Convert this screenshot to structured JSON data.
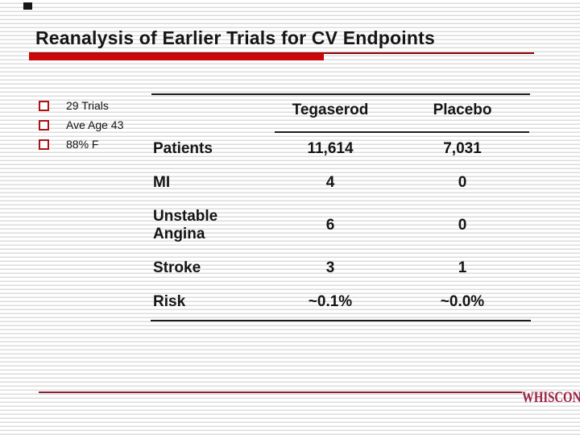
{
  "slide": {
    "title": "Reanalysis of Earlier Trials for CV Endpoints",
    "bullets": [
      {
        "label": "29 Trials"
      },
      {
        "label": "Ave Age 43"
      },
      {
        "label": "88% F"
      }
    ],
    "footer": {
      "brand": "WHISCON"
    },
    "colors": {
      "title_bar_red": "#cc0707",
      "thin_rule_dark_red": "#8b0000",
      "bullet_square_red": "#aa1414",
      "table_rule_black": "#1c1c1c",
      "footer_rule_maroon": "#8a2033",
      "brand_maroon": "#9e2043",
      "stripe_gray": "#dcdcdc"
    }
  },
  "chart_data": {
    "type": "table",
    "title": "Reanalysis of Earlier Trials for CV Endpoints",
    "columns": [
      "",
      "Tegaserod",
      "Placebo"
    ],
    "rows": [
      {
        "label": "Patients",
        "tegaserod": "11,614",
        "placebo": "7,031"
      },
      {
        "label": "MI",
        "tegaserod": "4",
        "placebo": "0"
      },
      {
        "label": "Unstable Angina",
        "tegaserod": "6",
        "placebo": "0"
      },
      {
        "label": "Stroke",
        "tegaserod": "3",
        "placebo": "1"
      },
      {
        "label": "Risk",
        "tegaserod": "~0.1%",
        "placebo": "~0.0%"
      }
    ]
  }
}
